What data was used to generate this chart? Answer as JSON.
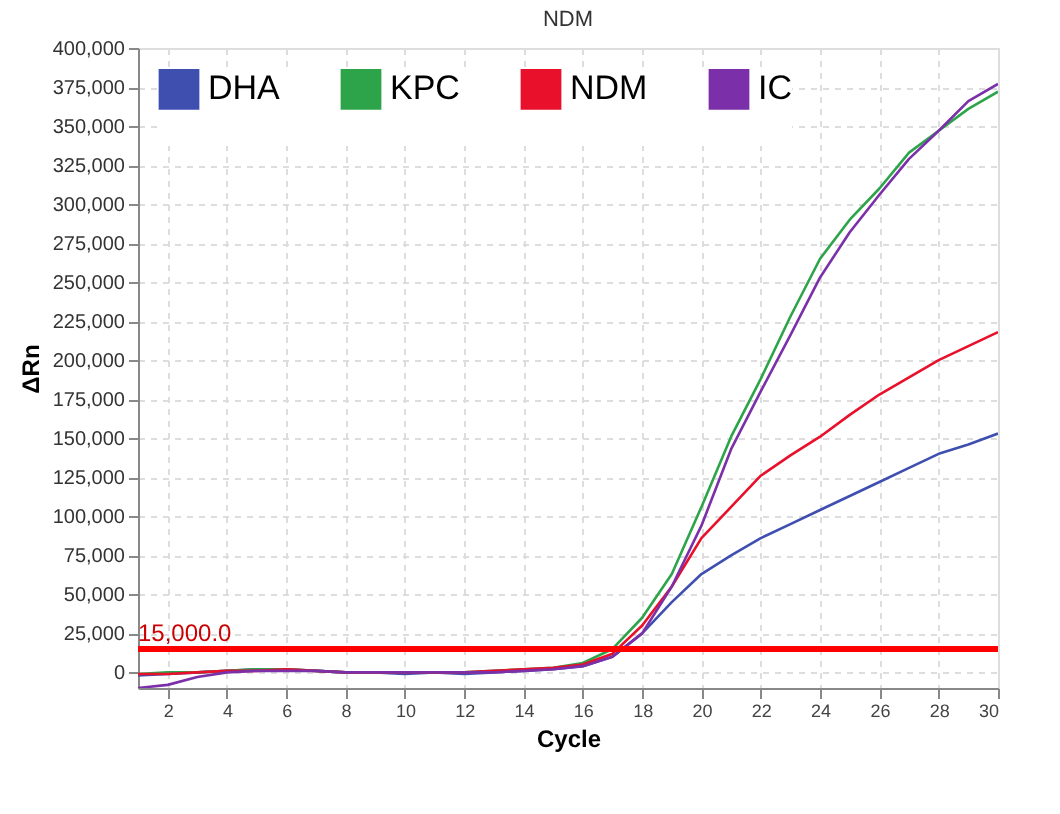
{
  "chart_data": {
    "type": "line",
    "title": "NDM",
    "xlabel": "Cycle",
    "ylabel": "ΔRn",
    "x": [
      1,
      2,
      3,
      4,
      5,
      6,
      7,
      8,
      9,
      10,
      11,
      12,
      13,
      14,
      15,
      16,
      17,
      18,
      19,
      20,
      21,
      22,
      23,
      24,
      25,
      26,
      27,
      28,
      29,
      30
    ],
    "series": [
      {
        "name": "DHA",
        "color": "#3f4fb0",
        "values": [
          -2000,
          -1000,
          0,
          1000,
          2000,
          2000,
          1000,
          0,
          0,
          -1000,
          0,
          -1000,
          0,
          1000,
          2000,
          4000,
          10000,
          25000,
          45000,
          63000,
          75000,
          86000,
          95000,
          104000,
          113000,
          122000,
          131000,
          140000,
          146000,
          153000
        ]
      },
      {
        "name": "KPC",
        "color": "#2ea44a",
        "values": [
          -1000,
          0,
          0,
          1000,
          2000,
          2000,
          1000,
          0,
          0,
          0,
          0,
          0,
          1000,
          2000,
          3000,
          6000,
          15000,
          35000,
          63000,
          106000,
          151000,
          188000,
          228000,
          265000,
          290000,
          310000,
          333000,
          347000,
          361000,
          372000
        ]
      },
      {
        "name": "NDM",
        "color": "#e8102a",
        "values": [
          -1000,
          -1000,
          0,
          1000,
          1000,
          2000,
          1000,
          0,
          0,
          0,
          0,
          0,
          1000,
          2000,
          3000,
          5000,
          12000,
          30000,
          55000,
          86000,
          106000,
          126000,
          139000,
          151000,
          165000,
          178000,
          189000,
          200000,
          209000,
          218000
        ]
      },
      {
        "name": "IC",
        "color": "#7b2fa8",
        "values": [
          -10000,
          -8000,
          -3000,
          0,
          1000,
          1000,
          1000,
          0,
          0,
          0,
          0,
          0,
          0,
          1000,
          2000,
          4000,
          10000,
          25000,
          55000,
          94000,
          143000,
          180000,
          216000,
          253000,
          282000,
          306000,
          329000,
          347000,
          366000,
          377000
        ]
      }
    ],
    "xlim": [
      1,
      30
    ],
    "xticks": [
      2,
      4,
      6,
      8,
      10,
      12,
      14,
      16,
      18,
      20,
      22,
      24,
      26,
      28,
      30
    ],
    "ylim": [
      -10000,
      400000
    ],
    "yticks": [
      0,
      {
        "value": 25000,
        "label": "25,000"
      },
      {
        "value": 50000,
        "label": "50,000"
      },
      {
        "value": 75000,
        "label": "75,000"
      },
      {
        "value": 100000,
        "label": "100,000"
      },
      {
        "value": 125000,
        "label": "125,000"
      },
      {
        "value": 150000,
        "label": "150,000"
      },
      {
        "value": 175000,
        "label": "175,000"
      },
      {
        "value": 200000,
        "label": "200,000"
      },
      {
        "value": 225000,
        "label": "225,000"
      },
      {
        "value": 250000,
        "label": "250,000"
      },
      {
        "value": 275000,
        "label": "275,000"
      },
      {
        "value": 300000,
        "label": "300,000"
      },
      {
        "value": 325000,
        "label": "325,000"
      },
      {
        "value": 350000,
        "label": "350,000"
      },
      {
        "value": 375000,
        "label": "375,000"
      },
      {
        "value": 400000,
        "label": "400,000"
      }
    ],
    "ref_lines": [
      {
        "axis": "y",
        "value": 15000,
        "label": "15,000.0",
        "color": "#ff0000"
      }
    ],
    "grid": true,
    "legend": "top left",
    "marker": "none",
    "line_style": "solid"
  }
}
